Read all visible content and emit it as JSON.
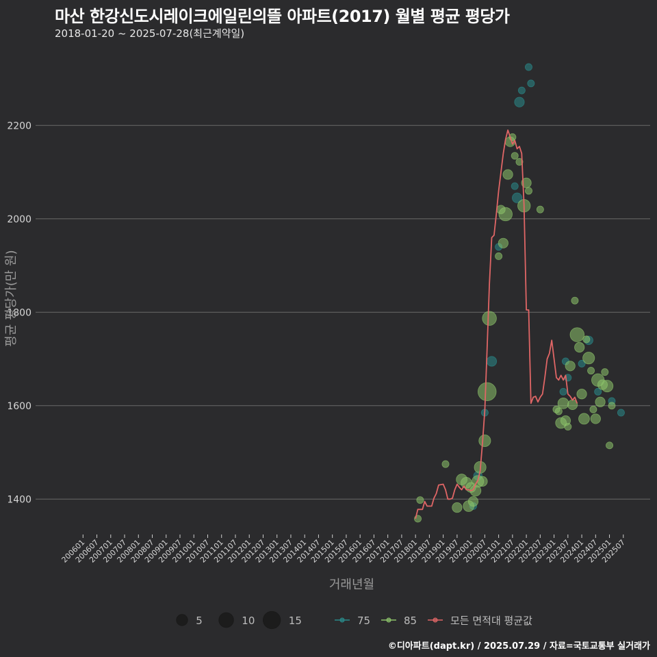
{
  "header": {
    "title": "마산 한강신도시레이크에일린의뜰 아파트(2017) 월별 평균 평당가",
    "subtitle": "2018-01-20 ~ 2025-07-28(최근계약일)"
  },
  "footer": {
    "credit": "©디아파트(dapt.kr) / 2025.07.29 / 자료=국토교통부 실거래가"
  },
  "colors": {
    "background": "#2b2b2d",
    "grid": "#6a6a6a",
    "area75": "#2a8a8a",
    "area85": "#8cc26a",
    "average": "#e06666"
  },
  "chart_data": {
    "type": "scatter",
    "title": "마산 한강신도시레이크에일린의뜰 아파트(2017) 월별 평균 평당가",
    "xlabel": "거래년월",
    "ylabel": "평균 평당가(만 원)",
    "ylim": [
      1310,
      2340
    ],
    "yticks": [
      1400,
      1600,
      1800,
      2000,
      2200
    ],
    "xlim": [
      0,
      235
    ],
    "x_ticks": [
      {
        "label": "200601",
        "m": 0
      },
      {
        "label": "200607",
        "m": 6
      },
      {
        "label": "200701",
        "m": 12
      },
      {
        "label": "200707",
        "m": 18
      },
      {
        "label": "200801",
        "m": 24
      },
      {
        "label": "200807",
        "m": 30
      },
      {
        "label": "200901",
        "m": 36
      },
      {
        "label": "200907",
        "m": 42
      },
      {
        "label": "201001",
        "m": 48
      },
      {
        "label": "201007",
        "m": 54
      },
      {
        "label": "201101",
        "m": 60
      },
      {
        "label": "201107",
        "m": 66
      },
      {
        "label": "201201",
        "m": 72
      },
      {
        "label": "201207",
        "m": 78
      },
      {
        "label": "201301",
        "m": 84
      },
      {
        "label": "201307",
        "m": 90
      },
      {
        "label": "201401",
        "m": 96
      },
      {
        "label": "201407",
        "m": 102
      },
      {
        "label": "201501",
        "m": 108
      },
      {
        "label": "201507",
        "m": 114
      },
      {
        "label": "201601",
        "m": 120
      },
      {
        "label": "201607",
        "m": 126
      },
      {
        "label": "201701",
        "m": 132
      },
      {
        "label": "201707",
        "m": 138
      },
      {
        "label": "201801",
        "m": 144
      },
      {
        "label": "201807",
        "m": 150
      },
      {
        "label": "201901",
        "m": 156
      },
      {
        "label": "201907",
        "m": 162
      },
      {
        "label": "202001",
        "m": 168
      },
      {
        "label": "202007",
        "m": 174
      },
      {
        "label": "202101",
        "m": 180
      },
      {
        "label": "202107",
        "m": 186
      },
      {
        "label": "202201",
        "m": 192
      },
      {
        "label": "202207",
        "m": 198
      },
      {
        "label": "202301",
        "m": 204
      },
      {
        "label": "202307",
        "m": 210
      },
      {
        "label": "202401",
        "m": 216
      },
      {
        "label": "202407",
        "m": 222
      },
      {
        "label": "202501",
        "m": 228
      },
      {
        "label": "202507",
        "m": 234
      }
    ],
    "series": [
      {
        "name": "75",
        "color": "#2a8a8a",
        "points": [
          {
            "m": 177,
            "v": 1695,
            "n": 3
          },
          {
            "m": 174,
            "v": 1585,
            "n": 1
          },
          {
            "m": 171,
            "v": 1450,
            "n": 2
          },
          {
            "m": 169,
            "v": 1385,
            "n": 1
          },
          {
            "m": 180,
            "v": 1940,
            "n": 1
          },
          {
            "m": 187,
            "v": 2070,
            "n": 1
          },
          {
            "m": 188,
            "v": 2045,
            "n": 3
          },
          {
            "m": 189,
            "v": 2250,
            "n": 3
          },
          {
            "m": 190,
            "v": 2275,
            "n": 1
          },
          {
            "m": 193,
            "v": 2325,
            "n": 1
          },
          {
            "m": 194,
            "v": 2290,
            "n": 1
          },
          {
            "m": 208,
            "v": 1630,
            "n": 1
          },
          {
            "m": 209,
            "v": 1695,
            "n": 1
          },
          {
            "m": 210,
            "v": 1660,
            "n": 1
          },
          {
            "m": 216,
            "v": 1690,
            "n": 1
          },
          {
            "m": 219,
            "v": 1740,
            "n": 2
          },
          {
            "m": 223,
            "v": 1630,
            "n": 1
          },
          {
            "m": 229,
            "v": 1610,
            "n": 1
          },
          {
            "m": 233,
            "v": 1585,
            "n": 1
          }
        ]
      },
      {
        "name": "85",
        "color": "#8cc26a",
        "points": [
          {
            "m": 145,
            "v": 1358,
            "n": 1
          },
          {
            "m": 146,
            "v": 1398,
            "n": 1
          },
          {
            "m": 157,
            "v": 1475,
            "n": 1
          },
          {
            "m": 162,
            "v": 1382,
            "n": 3
          },
          {
            "m": 164,
            "v": 1442,
            "n": 4
          },
          {
            "m": 166,
            "v": 1435,
            "n": 4
          },
          {
            "m": 167,
            "v": 1385,
            "n": 4
          },
          {
            "m": 168,
            "v": 1425,
            "n": 3
          },
          {
            "m": 169,
            "v": 1395,
            "n": 3
          },
          {
            "m": 170,
            "v": 1418,
            "n": 4
          },
          {
            "m": 171,
            "v": 1438,
            "n": 5
          },
          {
            "m": 172,
            "v": 1468,
            "n": 5
          },
          {
            "m": 173,
            "v": 1438,
            "n": 3
          },
          {
            "m": 174,
            "v": 1525,
            "n": 5
          },
          {
            "m": 175,
            "v": 1630,
            "n": 15
          },
          {
            "m": 176,
            "v": 1787,
            "n": 8
          },
          {
            "m": 180,
            "v": 1920,
            "n": 1
          },
          {
            "m": 181,
            "v": 2020,
            "n": 2
          },
          {
            "m": 182,
            "v": 1948,
            "n": 3
          },
          {
            "m": 183,
            "v": 2010,
            "n": 7
          },
          {
            "m": 184,
            "v": 2095,
            "n": 3
          },
          {
            "m": 185,
            "v": 2165,
            "n": 3
          },
          {
            "m": 186,
            "v": 2175,
            "n": 1
          },
          {
            "m": 187,
            "v": 2135,
            "n": 1
          },
          {
            "m": 189,
            "v": 2122,
            "n": 1
          },
          {
            "m": 191,
            "v": 2028,
            "n": 6
          },
          {
            "m": 192,
            "v": 2077,
            "n": 3
          },
          {
            "m": 193,
            "v": 2060,
            "n": 1
          },
          {
            "m": 198,
            "v": 2020,
            "n": 1
          },
          {
            "m": 205,
            "v": 1592,
            "n": 1
          },
          {
            "m": 206,
            "v": 1588,
            "n": 1
          },
          {
            "m": 207,
            "v": 1563,
            "n": 4
          },
          {
            "m": 208,
            "v": 1605,
            "n": 4
          },
          {
            "m": 209,
            "v": 1568,
            "n": 3
          },
          {
            "m": 210,
            "v": 1555,
            "n": 1
          },
          {
            "m": 211,
            "v": 1685,
            "n": 3
          },
          {
            "m": 212,
            "v": 1602,
            "n": 3
          },
          {
            "m": 213,
            "v": 1825,
            "n": 1
          },
          {
            "m": 214,
            "v": 1752,
            "n": 8
          },
          {
            "m": 215,
            "v": 1725,
            "n": 3
          },
          {
            "m": 216,
            "v": 1625,
            "n": 3
          },
          {
            "m": 217,
            "v": 1572,
            "n": 4
          },
          {
            "m": 218,
            "v": 1742,
            "n": 1
          },
          {
            "m": 219,
            "v": 1702,
            "n": 5
          },
          {
            "m": 220,
            "v": 1675,
            "n": 1
          },
          {
            "m": 221,
            "v": 1592,
            "n": 1
          },
          {
            "m": 222,
            "v": 1572,
            "n": 3
          },
          {
            "m": 223,
            "v": 1655,
            "n": 6
          },
          {
            "m": 224,
            "v": 1608,
            "n": 3
          },
          {
            "m": 225,
            "v": 1645,
            "n": 3
          },
          {
            "m": 226,
            "v": 1672,
            "n": 1
          },
          {
            "m": 227,
            "v": 1642,
            "n": 5
          },
          {
            "m": 228,
            "v": 1515,
            "n": 1
          },
          {
            "m": 229,
            "v": 1600,
            "n": 1
          }
        ]
      }
    ],
    "average_line": {
      "name": "모든 면적대 평균값",
      "color": "#e06666",
      "points": [
        [
          144,
          1358
        ],
        [
          145,
          1378
        ],
        [
          147,
          1378
        ],
        [
          148,
          1395
        ],
        [
          149,
          1385
        ],
        [
          151,
          1385
        ],
        [
          152,
          1402
        ],
        [
          153,
          1412
        ],
        [
          154,
          1430
        ],
        [
          156,
          1432
        ],
        [
          157,
          1420
        ],
        [
          158,
          1400
        ],
        [
          159,
          1400
        ],
        [
          160,
          1402
        ],
        [
          161,
          1420
        ],
        [
          162,
          1432
        ],
        [
          163,
          1425
        ],
        [
          164,
          1420
        ],
        [
          165,
          1428
        ],
        [
          166,
          1420
        ],
        [
          167,
          1420
        ],
        [
          168,
          1418
        ],
        [
          169,
          1420
        ],
        [
          170,
          1432
        ],
        [
          171,
          1440
        ],
        [
          172,
          1460
        ],
        [
          173,
          1520
        ],
        [
          174,
          1590
        ],
        [
          175,
          1720
        ],
        [
          176,
          1860
        ],
        [
          177,
          1960
        ],
        [
          178,
          1965
        ],
        [
          179,
          2010
        ],
        [
          180,
          2060
        ],
        [
          181,
          2100
        ],
        [
          182,
          2140
        ],
        [
          183,
          2170
        ],
        [
          184,
          2190
        ],
        [
          185,
          2175
        ],
        [
          186,
          2160
        ],
        [
          187,
          2168
        ],
        [
          188,
          2150
        ],
        [
          189,
          2155
        ],
        [
          190,
          2140
        ],
        [
          191,
          2030
        ],
        [
          192,
          1805
        ],
        [
          193,
          1805
        ],
        [
          194,
          1605
        ],
        [
          195,
          1618
        ],
        [
          196,
          1620
        ],
        [
          197,
          1608
        ],
        [
          198,
          1618
        ],
        [
          199,
          1625
        ],
        [
          200,
          1660
        ],
        [
          201,
          1700
        ],
        [
          202,
          1712
        ],
        [
          203,
          1740
        ],
        [
          204,
          1700
        ],
        [
          205,
          1660
        ],
        [
          206,
          1655
        ],
        [
          207,
          1665
        ],
        [
          208,
          1655
        ],
        [
          209,
          1665
        ],
        [
          210,
          1625
        ],
        [
          211,
          1620
        ],
        [
          212,
          1612
        ],
        [
          213,
          1618
        ],
        [
          214,
          1605
        ]
      ]
    },
    "size_legend": [
      {
        "label": "5",
        "n": 5
      },
      {
        "label": "10",
        "n": 10
      },
      {
        "label": "15",
        "n": 15
      }
    ],
    "color_legend": [
      {
        "label": "75",
        "key": "area75"
      },
      {
        "label": "85",
        "key": "area85"
      },
      {
        "label": "모든 면적대 평균값",
        "key": "average"
      }
    ]
  }
}
